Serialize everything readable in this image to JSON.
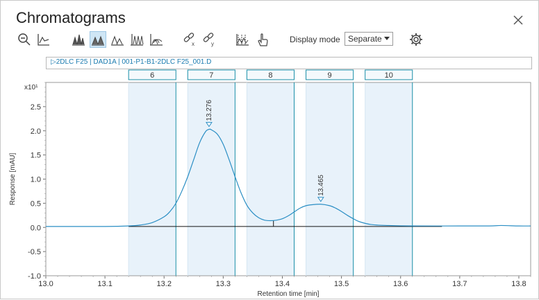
{
  "window": {
    "title": "Chromatograms"
  },
  "toolbar": {
    "icons": [
      "zoom-out-icon",
      "autoscale-icon",
      "overlay-all-icon",
      "separate-peaks-icon",
      "stack-peaks-icon",
      "stack-offset-icon",
      "stack-3d-icon",
      "unlink-x-icon",
      "unlink-y-icon",
      "fractions-icon",
      "pointer-hand-icon"
    ],
    "active_index": 3,
    "display_mode_label": "Display mode",
    "display_mode_value": "Separate",
    "settings_icon": "gear-icon"
  },
  "chart_header": "▷2DLC F25 | DAD1A | 001-P1-B1-2DLC F25_001.D",
  "colors": {
    "trace": "#2a8ec4",
    "fraction_fill": "#e8f2fa",
    "fraction_border": "#1a8fa8",
    "baseline": "#111111"
  },
  "chart_data": {
    "type": "line",
    "xlabel": "Retention time [min]",
    "ylabel": "Response [mAU]",
    "y_multiplier": "x10¹",
    "xlim": [
      13.0,
      13.82
    ],
    "ylim": [
      -1.0,
      3.0
    ],
    "xticks": [
      "13.0",
      "13.1",
      "13.2",
      "13.3",
      "13.4",
      "13.5",
      "13.6",
      "13.7",
      "13.8"
    ],
    "yticks": [
      "-1.0",
      "-0.5",
      "0.0",
      "0.5",
      "1.0",
      "1.5",
      "2.0",
      "2.5"
    ],
    "peaks": [
      {
        "label": "13.276",
        "x": 13.276,
        "y": 2.03
      },
      {
        "label": "13.465",
        "x": 13.465,
        "y": 0.48
      }
    ],
    "fractions": [
      {
        "label": "6",
        "start": 13.14,
        "end": 13.22
      },
      {
        "label": "7",
        "start": 13.24,
        "end": 13.32
      },
      {
        "label": "8",
        "start": 13.34,
        "end": 13.42
      },
      {
        "label": "9",
        "start": 13.44,
        "end": 13.52
      },
      {
        "label": "10",
        "start": 13.54,
        "end": 13.62
      }
    ],
    "baseline": {
      "x_start": 13.14,
      "x_end": 13.67,
      "y": 0.02,
      "split_x": 13.385
    },
    "series": [
      {
        "x": [
          13.0,
          13.1,
          13.14,
          13.16,
          13.18,
          13.2,
          13.21,
          13.22,
          13.23,
          13.24,
          13.25,
          13.26,
          13.27,
          13.276,
          13.28,
          13.29,
          13.3,
          13.31,
          13.32,
          13.33,
          13.34,
          13.35,
          13.36,
          13.37,
          13.38,
          13.39,
          13.4,
          13.41,
          13.42,
          13.43,
          13.44,
          13.45,
          13.465,
          13.48,
          13.49,
          13.5,
          13.51,
          13.52,
          13.53,
          13.55,
          13.58,
          13.62,
          13.7,
          13.75,
          13.77,
          13.8,
          13.82
        ],
        "y": [
          0.02,
          0.02,
          0.03,
          0.05,
          0.1,
          0.22,
          0.33,
          0.5,
          0.75,
          1.05,
          1.4,
          1.75,
          1.98,
          2.03,
          2.02,
          1.93,
          1.72,
          1.4,
          1.05,
          0.72,
          0.46,
          0.3,
          0.2,
          0.15,
          0.14,
          0.15,
          0.18,
          0.24,
          0.32,
          0.4,
          0.45,
          0.47,
          0.48,
          0.45,
          0.4,
          0.33,
          0.25,
          0.18,
          0.12,
          0.06,
          0.04,
          0.03,
          0.03,
          0.03,
          0.04,
          0.03,
          0.03
        ]
      }
    ]
  }
}
